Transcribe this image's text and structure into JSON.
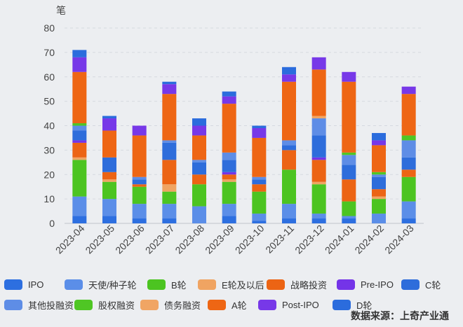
{
  "chart_data": {
    "type": "bar",
    "stacked": true,
    "ylabel": "笔",
    "ylim": [
      0,
      80
    ],
    "yticks": [
      0,
      10,
      20,
      30,
      40,
      50,
      60,
      70,
      80
    ],
    "grid": true,
    "legend_position": "bottom",
    "categories": [
      "2023-04",
      "2023-05",
      "2023-06",
      "2023-07",
      "2023-08",
      "2023-09",
      "2023-10",
      "2023-11",
      "2023-12",
      "2024-01",
      "2024-02",
      "2024-03"
    ],
    "series": [
      {
        "name": "IPO",
        "color": "#2D6FE0",
        "values": [
          3,
          3,
          2,
          2,
          0,
          3,
          1,
          2,
          2,
          2,
          0,
          2
        ]
      },
      {
        "name": "天使/种子轮",
        "color": "#5B8EE8",
        "values": [
          8,
          7,
          6,
          6,
          7,
          5,
          3,
          6,
          2,
          1,
          4,
          7
        ]
      },
      {
        "name": "B轮",
        "color": "#4CC421",
        "values": [
          15,
          7,
          7,
          5,
          9,
          9,
          9,
          14,
          12,
          6,
          6,
          10
        ]
      },
      {
        "name": "E轮及以后",
        "color": "#F0A462",
        "values": [
          1,
          1,
          0,
          3,
          0,
          1,
          0,
          0,
          1,
          0,
          1,
          0
        ]
      },
      {
        "name": "战略投资",
        "color": "#EC6414",
        "values": [
          6,
          3,
          1,
          10,
          4,
          2,
          3,
          8,
          9,
          9,
          3,
          3
        ]
      },
      {
        "name": "Pre-IPO",
        "color": "#7434E8",
        "values": [
          1,
          0,
          0,
          0,
          0,
          1,
          0,
          0,
          1,
          0,
          0,
          0
        ]
      },
      {
        "name": "C轮",
        "color": "#2E6DDB",
        "values": [
          4,
          6,
          2,
          7,
          5,
          5,
          2,
          2,
          9,
          6,
          5,
          5
        ]
      },
      {
        "name": "其他投融资",
        "color": "#5E8DE6",
        "values": [
          2,
          0,
          1,
          1,
          1,
          3,
          1,
          2,
          7,
          4,
          1,
          7
        ]
      },
      {
        "name": "股权融资",
        "color": "#4FC624",
        "values": [
          1,
          0,
          0,
          0,
          0,
          0,
          0,
          0,
          0,
          1,
          1,
          2
        ]
      },
      {
        "name": "债务融资",
        "color": "#F0A564",
        "values": [
          0,
          0,
          0,
          0,
          0,
          0,
          0,
          0,
          1,
          0,
          0,
          0
        ]
      },
      {
        "name": "A轮",
        "color": "#EE6614",
        "values": [
          21,
          11,
          17,
          19,
          10,
          20,
          16,
          24,
          19,
          29,
          11,
          17
        ]
      },
      {
        "name": "Post-IPO",
        "color": "#7738E8",
        "values": [
          6,
          5,
          4,
          4,
          4,
          3,
          4,
          3,
          5,
          4,
          2,
          3
        ]
      },
      {
        "name": "D轮",
        "color": "#2B6CDD",
        "values": [
          3,
          1,
          0,
          1,
          3,
          2,
          1,
          3,
          0,
          0,
          3,
          0
        ]
      }
    ]
  },
  "legend_rows": [
    [
      0,
      1,
      2,
      3,
      4,
      5,
      6
    ],
    [
      7,
      8,
      9,
      10,
      11,
      12
    ]
  ],
  "source_label": "数据来源：上奇产业通"
}
